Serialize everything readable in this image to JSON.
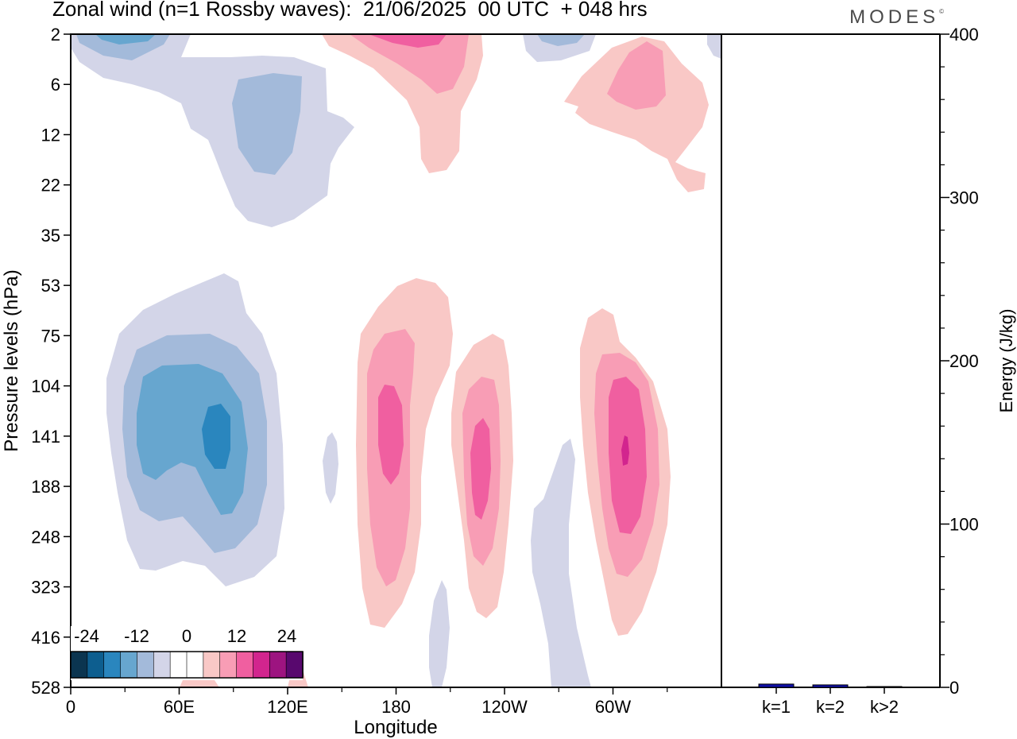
{
  "header": {
    "title": "Zonal wind (n=1 Rossby waves):  21/06/2025  00 UTC  + 048 hrs",
    "brand": "MODES",
    "brand_mark": "©"
  },
  "chart_data": [
    {
      "type": "heatmap",
      "title": "Zonal wind (n=1 Rossby waves):  21/06/2025  00 UTC  + 048 hrs",
      "xlabel": "Longitude",
      "ylabel": "Pressure levels (hPa)",
      "x_ticks": [
        "0",
        "60E",
        "120E",
        "180",
        "120W",
        "60W"
      ],
      "x_tick_values": [
        0,
        60,
        120,
        180,
        240,
        300
      ],
      "xlim": [
        0,
        360
      ],
      "y_ticks": [
        "2",
        "6",
        "12",
        "22",
        "35",
        "53",
        "75",
        "104",
        "141",
        "188",
        "248",
        "323",
        "416",
        "528"
      ],
      "legend": {
        "placement": "bottom-left",
        "labels": [
          "-24",
          "-12",
          "0",
          "12",
          "24"
        ],
        "colors": [
          "#0b3550",
          "#0d5e8f",
          "#2a86be",
          "#67a6cf",
          "#a3bada",
          "#d3d5e8",
          "#ffffff",
          "#ffffff",
          "#f9c8c6",
          "#f89db5",
          "#f05fa0",
          "#d2258e",
          "#9d1480",
          "#58086e"
        ]
      },
      "features": [
        {
          "sign": "negative",
          "longitude": 80,
          "pressure_level": 141,
          "peak_level": -18
        },
        {
          "sign": "positive",
          "longitude": 175,
          "pressure_level": 141,
          "peak_level": 12
        },
        {
          "sign": "positive",
          "longitude": 227,
          "pressure_level": 160,
          "peak_level": 12
        },
        {
          "sign": "positive",
          "longitude": 307,
          "pressure_level": 141,
          "peak_level": 15
        },
        {
          "sign": "negative",
          "longitude": 100,
          "pressure_level": 8,
          "peak_level": -9
        },
        {
          "sign": "positive",
          "longitude": 200,
          "pressure_level": 2,
          "peak_level": 12
        },
        {
          "sign": "positive",
          "longitude": 315,
          "pressure_level": 6,
          "peak_level": 9
        }
      ]
    },
    {
      "type": "bar",
      "categories": [
        "k=1",
        "k=2",
        "k>2"
      ],
      "values": [
        2,
        1.5,
        0.5
      ],
      "ylabel": "Energy (J/kg)",
      "ylim": [
        0,
        400
      ],
      "y_ticks": [
        "0",
        "100",
        "200",
        "300",
        "400"
      ],
      "colors": [
        "#1010a8",
        "#1010a8",
        "#1010a8"
      ]
    }
  ]
}
